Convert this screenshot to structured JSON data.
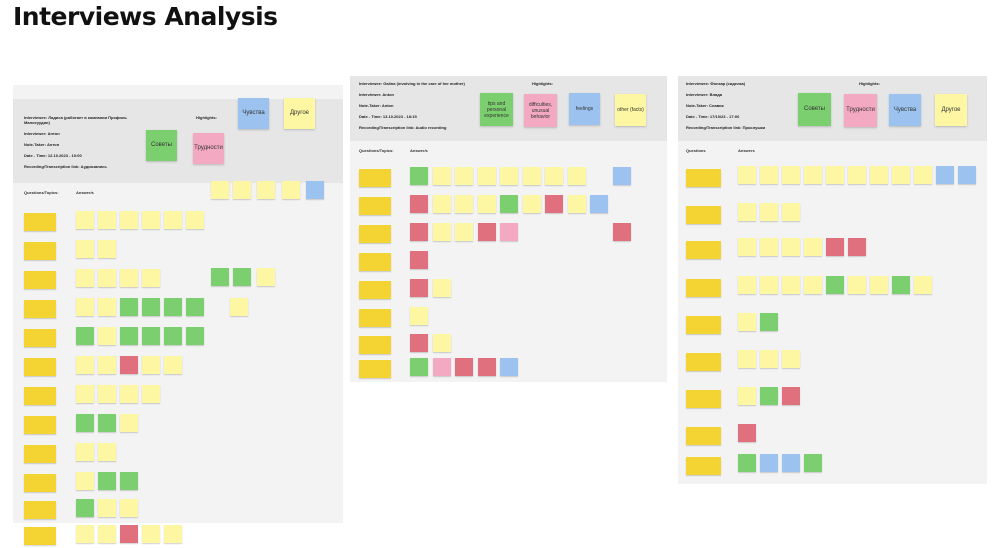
{
  "page": {
    "title": "Interviews Analysis"
  },
  "boards": [
    {
      "meta": [
        "Interviewee: Ладиса (работает в компании Профиль",
        "Малохуудин)",
        "Interviewer: Антон",
        "Note-Taker: Антон",
        "Date - Time: 12.10.2023 - 10:00",
        "Recording/Transcription link: Аудиозапись"
      ],
      "highlights_label": "Highlights:",
      "highlights": [
        "Советы",
        "Трудности",
        "Чувства",
        "Другое"
      ],
      "col_question": "Questions/Topics:",
      "col_answer": "Answer/s"
    },
    {
      "meta": [
        "Interviewee: Galina (involving in the care of her mother)",
        "Interviewer: Anton",
        "Note-Taker: Anton",
        "Date - Time: 13.10.2023 - 18:15",
        "Recording/Transcription link: Audio recording"
      ],
      "highlights_label": "Highlights:",
      "highlights": [
        "tips and personal experience",
        "difficulties, unusual behavior",
        "feelings",
        "other (facts)"
      ],
      "col_question": "Questions/Topics:",
      "col_answer": "Answer/s"
    },
    {
      "meta": [
        "Interviewee: Фонзар (сиделка)",
        "Interviewer: Владa",
        "Note-Taker: Славик",
        "Date - Time: 17/10/23 - 17:00",
        "Recording/Transcription link: Прослушки"
      ],
      "highlights_label": "Highlights:",
      "highlights": [
        "Советы",
        "Трудности",
        "Чувства",
        "Другое"
      ],
      "col_question": "Questions",
      "col_answer": "Answers"
    }
  ],
  "colors": {
    "yellow": "#f4d432",
    "green": "#7ccf6e",
    "pink": "#f3a9c2",
    "blue": "#9cc3ef",
    "light_yellow": "#fdf7a3",
    "red": "#e0707e"
  }
}
